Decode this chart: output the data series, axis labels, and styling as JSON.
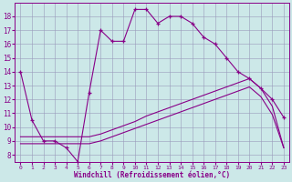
{
  "xlabel": "Windchill (Refroidissement éolien,°C)",
  "bg_color": "#cce8e8",
  "line_color": "#880088",
  "grid_color": "#9999bb",
  "xlim_min": -0.5,
  "xlim_max": 23.5,
  "ylim_min": 7.5,
  "ylim_max": 19.0,
  "yticks": [
    8,
    9,
    10,
    11,
    12,
    13,
    14,
    15,
    16,
    17,
    18
  ],
  "xticks": [
    0,
    1,
    2,
    3,
    4,
    5,
    6,
    7,
    8,
    9,
    10,
    11,
    12,
    13,
    14,
    15,
    16,
    17,
    18,
    19,
    20,
    21,
    22,
    23
  ],
  "curve1_x": [
    0,
    1,
    2,
    3,
    4,
    5,
    6,
    7,
    8,
    9,
    10,
    11,
    12,
    13,
    14,
    15,
    16,
    17,
    18,
    19,
    20,
    21,
    22,
    23
  ],
  "curve1_y": [
    14.0,
    10.5,
    9.0,
    9.0,
    8.5,
    7.5,
    12.5,
    17.0,
    16.2,
    16.2,
    18.5,
    18.5,
    17.5,
    18.0,
    18.0,
    17.5,
    16.5,
    16.0,
    15.0,
    14.0,
    13.5,
    12.8,
    12.0,
    10.7
  ],
  "curve2_x": [
    0,
    1,
    2,
    3,
    4,
    5,
    6,
    7,
    8,
    9,
    10,
    11,
    12,
    13,
    14,
    15,
    16,
    17,
    18,
    19,
    20,
    21,
    22,
    23
  ],
  "curve2_y": [
    9.3,
    9.3,
    9.3,
    9.3,
    9.3,
    9.3,
    9.3,
    9.5,
    9.8,
    10.1,
    10.4,
    10.8,
    11.1,
    11.4,
    11.7,
    12.0,
    12.3,
    12.6,
    12.9,
    13.2,
    13.5,
    12.8,
    11.5,
    8.5
  ],
  "curve3_x": [
    0,
    1,
    2,
    3,
    4,
    5,
    6,
    7,
    8,
    9,
    10,
    11,
    12,
    13,
    14,
    15,
    16,
    17,
    18,
    19,
    20,
    21,
    22,
    23
  ],
  "curve3_y": [
    8.8,
    8.8,
    8.8,
    8.8,
    8.8,
    8.8,
    8.8,
    9.0,
    9.3,
    9.6,
    9.9,
    10.2,
    10.5,
    10.8,
    11.1,
    11.4,
    11.7,
    12.0,
    12.3,
    12.6,
    12.9,
    12.2,
    10.9,
    8.5
  ]
}
